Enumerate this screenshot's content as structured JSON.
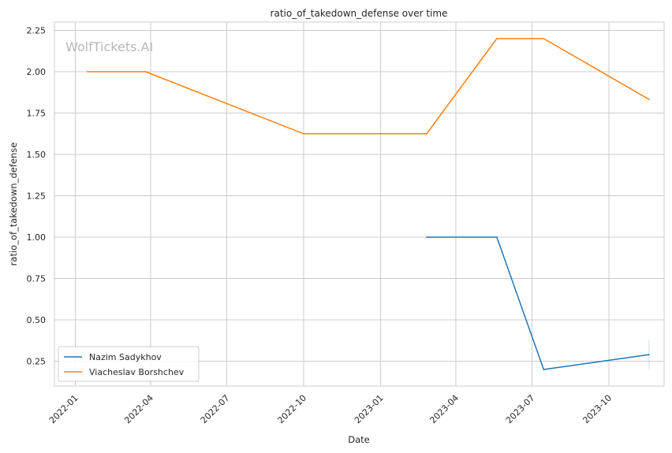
{
  "chart_data": {
    "type": "line",
    "title": "ratio_of_takedown_defense over time",
    "xlabel": "Date",
    "ylabel": "ratio_of_takedown_defense",
    "watermark": "WolfTickets.AI",
    "x_tick_labels": [
      "2022-01",
      "2022-04",
      "2022-07",
      "2022-10",
      "2023-01",
      "2023-04",
      "2023-07",
      "2023-10"
    ],
    "x_ticks": [
      "2022-01-01",
      "2022-04-01",
      "2022-07-01",
      "2022-10-01",
      "2023-01-01",
      "2023-04-01",
      "2023-07-01",
      "2023-10-01"
    ],
    "xlim": [
      "2021-12-07",
      "2023-12-06"
    ],
    "y_ticks": [
      0.25,
      0.5,
      0.75,
      1.0,
      1.25,
      1.5,
      1.75,
      2.0,
      2.25
    ],
    "y_tick_labels": [
      "0.25",
      "0.50",
      "0.75",
      "1.00",
      "1.25",
      "1.50",
      "1.75",
      "2.00",
      "2.25"
    ],
    "ylim": [
      0.1,
      2.3
    ],
    "grid": true,
    "legend_position": "bottom-left",
    "series": [
      {
        "name": "Nazim Sadykhov",
        "color": "#1f77b4",
        "points": [
          {
            "x": "2023-02-25",
            "y": 1.0
          },
          {
            "x": "2023-05-20",
            "y": 1.0
          },
          {
            "x": "2023-07-15",
            "y": 0.2
          },
          {
            "x": "2023-11-18",
            "y": 0.29
          }
        ]
      },
      {
        "name": "Viacheslav Borshchev",
        "color": "#ff7f0e",
        "points": [
          {
            "x": "2022-01-15",
            "y": 2.0
          },
          {
            "x": "2022-03-26",
            "y": 2.0
          },
          {
            "x": "2022-10-01",
            "y": 1.625
          },
          {
            "x": "2023-02-25",
            "y": 1.625
          },
          {
            "x": "2023-05-20",
            "y": 2.2
          },
          {
            "x": "2023-07-15",
            "y": 2.2
          },
          {
            "x": "2023-11-18",
            "y": 1.833
          }
        ]
      }
    ]
  }
}
